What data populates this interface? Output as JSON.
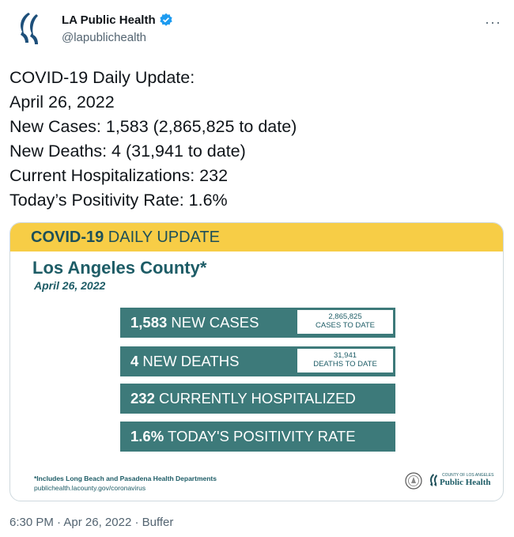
{
  "author": {
    "name": "LA Public Health",
    "handle": "@lapublichealth",
    "avatar_icon": "la-public-health-logo-icon",
    "verified_icon": "verified-badge-icon",
    "more_icon": "more-options-icon",
    "more_glyph": "···"
  },
  "tweet": {
    "lines": [
      "COVID-19 Daily Update:",
      "April 26, 2022",
      "New Cases: 1,583 (2,865,825 to date)",
      "New Deaths: 4 (31,941 to date)",
      "Current Hospitalizations: 232",
      "Today’s Positivity Rate: 1.6%"
    ]
  },
  "image": {
    "banner_bold": "COVID-19",
    "banner_rest": " DAILY UPDATE",
    "county": "Los Angeles County*",
    "date": "April 26, 2022",
    "stats": [
      {
        "bold": "1,583",
        "label": " NEW CASES",
        "todate_value": "2,865,825",
        "todate_label": "CASES TO DATE"
      },
      {
        "bold": "4",
        "label": " NEW DEATHS",
        "todate_value": "31,941",
        "todate_label": "DEATHS TO DATE"
      },
      {
        "bold": "232",
        "label": " CURRENTLY HOSPITALIZED"
      },
      {
        "bold": "1.6%",
        "label": " TODAY'S POSITIVITY RATE"
      }
    ],
    "footnote": "*Includes Long Beach and Pasadena Health Departments",
    "url": "publichealth.lacounty.gov/coronavirus",
    "logo_small": "COUNTY OF LOS ANGELES",
    "logo_text": "Public Health",
    "seal_icon": "county-seal-icon",
    "colors": {
      "banner": "#f7cd46",
      "teal": "#3d7a7a",
      "text_teal": "#1d5c66"
    }
  },
  "footer": {
    "time": "6:30 PM",
    "sep1": " · ",
    "date": "Apr 26, 2022",
    "sep2": " · ",
    "source": "Buffer"
  }
}
